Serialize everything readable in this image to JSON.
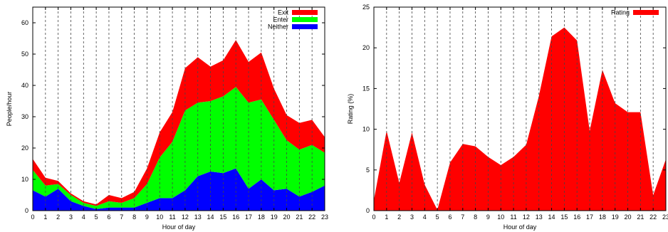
{
  "chart_data": [
    {
      "type": "area",
      "stacked": true,
      "x": [
        0,
        1,
        2,
        3,
        4,
        5,
        6,
        7,
        8,
        9,
        10,
        11,
        12,
        13,
        14,
        15,
        16,
        17,
        18,
        19,
        20,
        21,
        22,
        23
      ],
      "xlabel": "Hour of day",
      "ylabel": "People/hour",
      "xlim": [
        0,
        23
      ],
      "ylim": [
        0,
        65
      ],
      "yticks": [
        0,
        10,
        20,
        30,
        40,
        50,
        60
      ],
      "grid": "vertical dashed",
      "legend_position": "top-right",
      "series": [
        {
          "name": "Neither",
          "color": "#0000ff",
          "values": [
            6.5,
            4.5,
            7,
            3,
            1.5,
            0.5,
            1,
            1,
            1,
            2.5,
            4,
            4,
            6.5,
            11,
            12.5,
            12,
            13.5,
            7,
            10,
            6.5,
            7,
            4.5,
            6,
            8
          ]
        },
        {
          "name": "Enter",
          "color": "#00ff00",
          "values": [
            6.5,
            3.5,
            1.5,
            2,
            1,
            1,
            2,
            1.5,
            3,
            6,
            13,
            18,
            25.5,
            23.5,
            22.5,
            24.5,
            26,
            27.5,
            25.5,
            22.5,
            15.5,
            15,
            15,
            10.5
          ]
        },
        {
          "name": "Exit",
          "color": "#ff0000",
          "values": [
            3.5,
            2.5,
            1,
            0.5,
            0.5,
            0.5,
            2,
            1.5,
            2,
            5,
            8,
            9.5,
            13.5,
            14.5,
            11,
            11.5,
            15,
            13,
            15,
            10,
            8,
            8.5,
            8,
            5
          ]
        }
      ]
    },
    {
      "type": "area",
      "x": [
        0,
        1,
        2,
        3,
        4,
        5,
        6,
        7,
        8,
        9,
        10,
        11,
        12,
        13,
        14,
        15,
        16,
        17,
        18,
        19,
        20,
        21,
        22,
        23
      ],
      "xlabel": "Hour of day",
      "ylabel": "Rating (%)",
      "xlim": [
        0,
        23
      ],
      "ylim": [
        0,
        25
      ],
      "yticks": [
        0,
        5,
        10,
        15,
        20,
        25
      ],
      "grid": "vertical dashed",
      "legend_position": "top-right",
      "series": [
        {
          "name": "Rating",
          "color": "#ff0000",
          "values": [
            1.3,
            9.8,
            3.4,
            9.6,
            3.2,
            0.1,
            5.9,
            8.2,
            7.9,
            6.6,
            5.6,
            6.6,
            8.1,
            14.1,
            21.4,
            22.5,
            20.9,
            9.8,
            17.3,
            13.2,
            12.1,
            12.1,
            1.9,
            6.3
          ]
        }
      ]
    }
  ]
}
